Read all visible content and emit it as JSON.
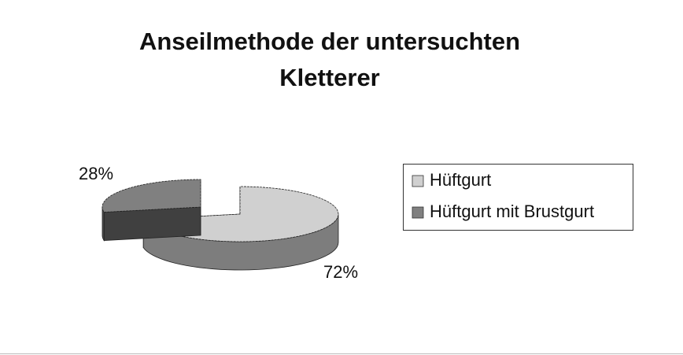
{
  "chart_data": {
    "type": "pie3d",
    "title": "Anseilmethode der untersuchten Kletterer",
    "categories": [
      "Hüftgurt",
      "Hüftgurt mit Brustgurt"
    ],
    "values": [
      72,
      28
    ],
    "value_labels": [
      "72%",
      "28%"
    ],
    "colors": [
      "#d0d0d0",
      "#808080"
    ],
    "legend": "right"
  }
}
